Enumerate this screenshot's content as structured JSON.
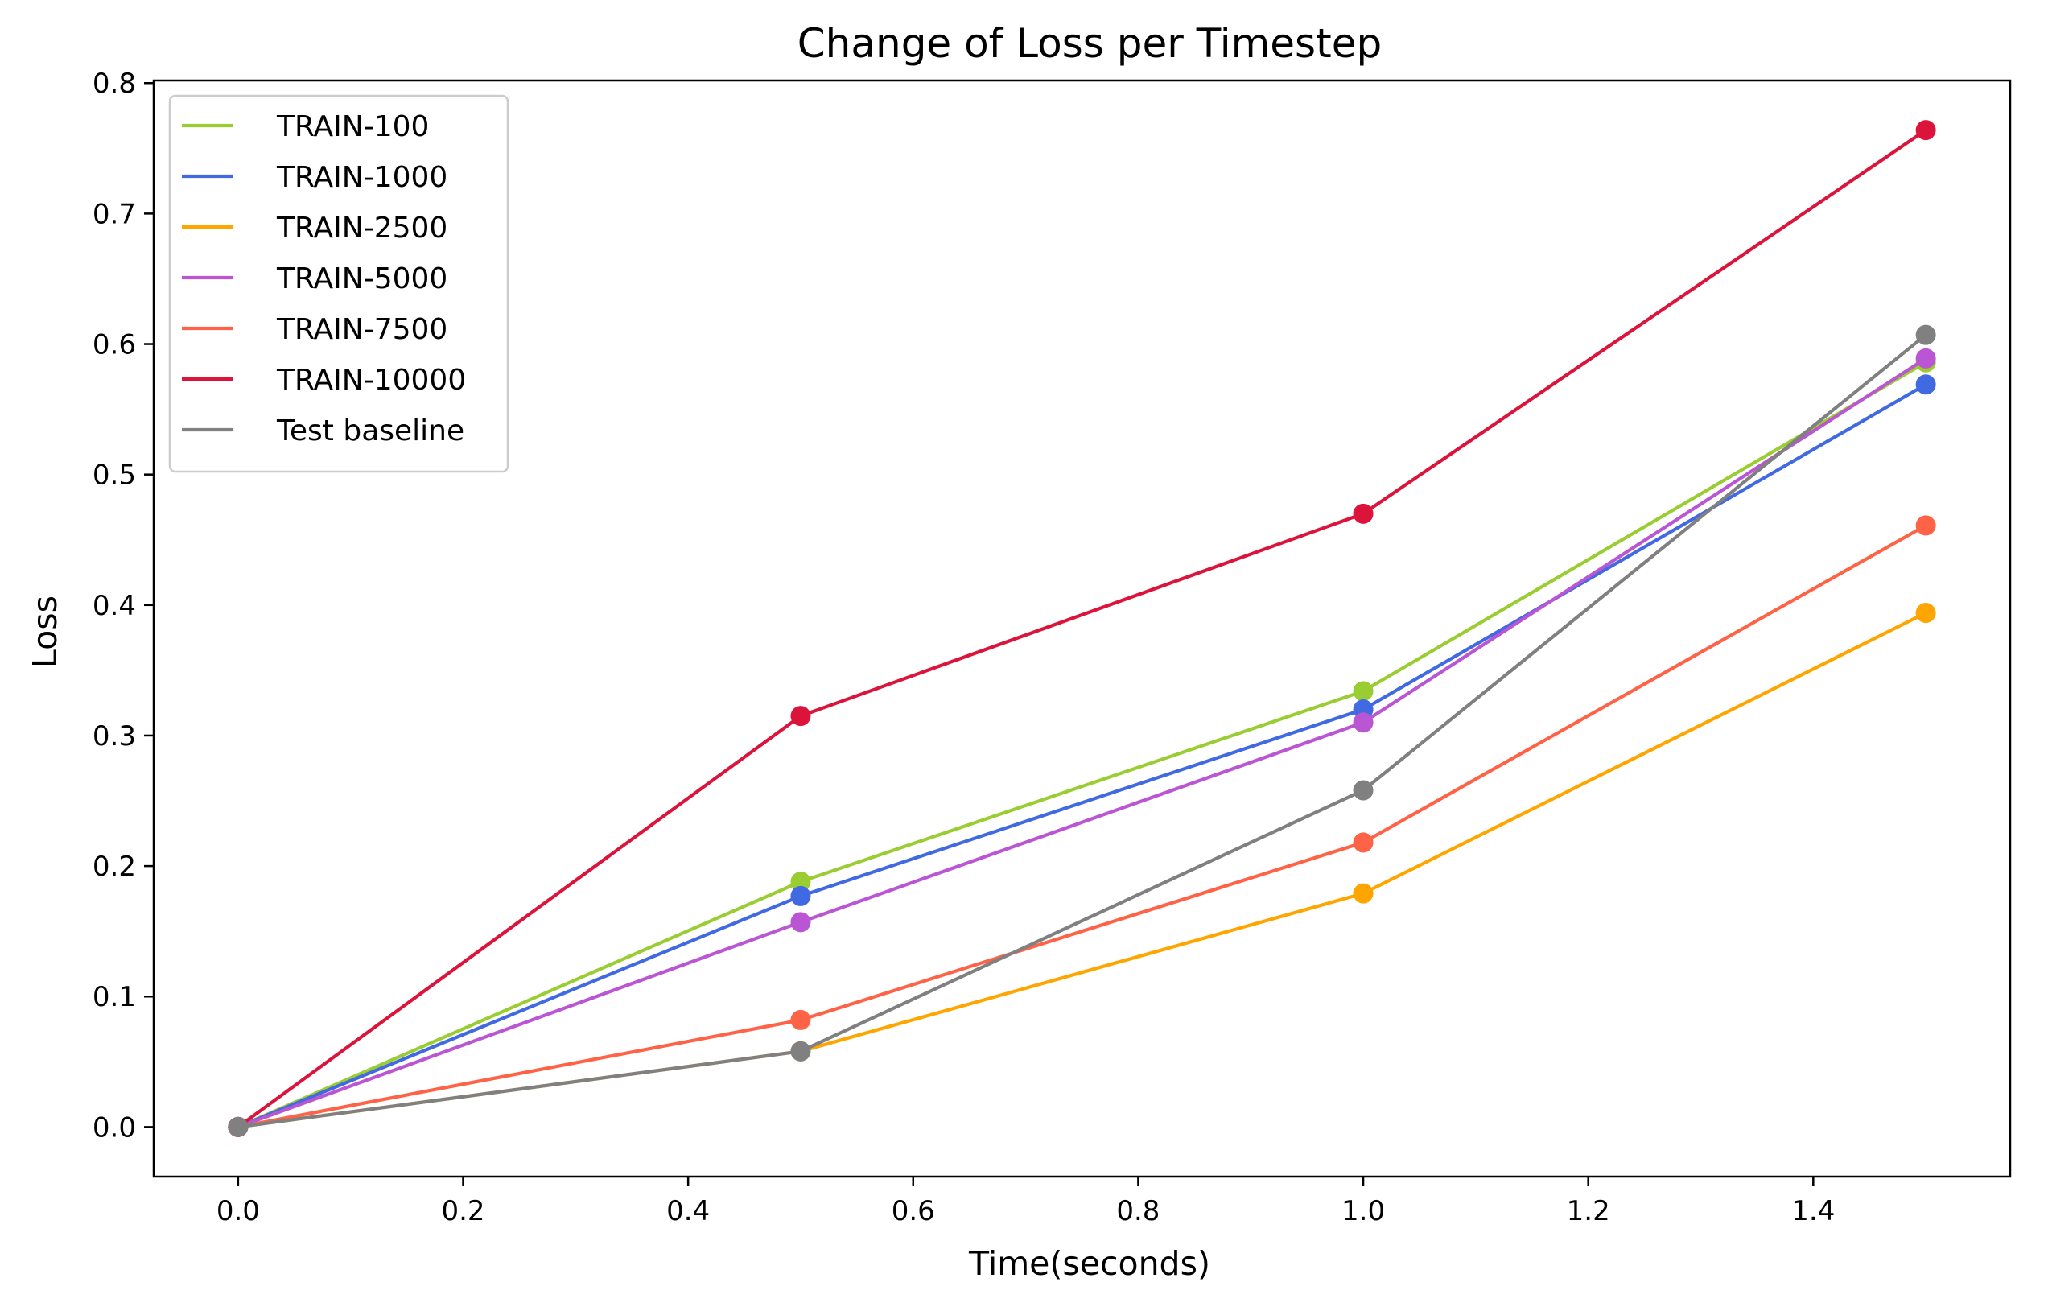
{
  "chart_data": {
    "type": "line",
    "title": "Change of Loss per Timestep",
    "xlabel": "Time(seconds)",
    "ylabel": "Loss",
    "x": [
      0.0,
      0.5,
      1.0,
      1.5
    ],
    "xlim": [
      -0.075,
      1.575
    ],
    "ylim": [
      -0.038,
      0.802
    ],
    "x_ticks": [
      "0.0",
      "0.2",
      "0.4",
      "0.6",
      "0.8",
      "1.0",
      "1.2",
      "1.4"
    ],
    "y_ticks": [
      "0.0",
      "0.1",
      "0.2",
      "0.3",
      "0.4",
      "0.5",
      "0.6",
      "0.7",
      "0.8"
    ],
    "grid": false,
    "legend_position": "upper-left",
    "series": [
      {
        "name": "TRAIN-100",
        "color": "#9acd32",
        "values": [
          0.0,
          0.188,
          0.334,
          0.586
        ]
      },
      {
        "name": "TRAIN-1000",
        "color": "#4169e1",
        "values": [
          0.0,
          0.177,
          0.32,
          0.569
        ]
      },
      {
        "name": "TRAIN-2500",
        "color": "#ffa500",
        "values": [
          0.0,
          0.058,
          0.179,
          0.394
        ]
      },
      {
        "name": "TRAIN-5000",
        "color": "#ba55d3",
        "values": [
          0.0,
          0.157,
          0.31,
          0.589
        ]
      },
      {
        "name": "TRAIN-7500",
        "color": "#ff6347",
        "values": [
          0.0,
          0.082,
          0.218,
          0.461
        ]
      },
      {
        "name": "TRAIN-10000",
        "color": "#dc143c",
        "values": [
          0.0,
          0.315,
          0.47,
          0.764
        ]
      },
      {
        "name": "Test baseline",
        "color": "#808080",
        "values": [
          0.0,
          0.058,
          0.258,
          0.607
        ]
      }
    ]
  }
}
